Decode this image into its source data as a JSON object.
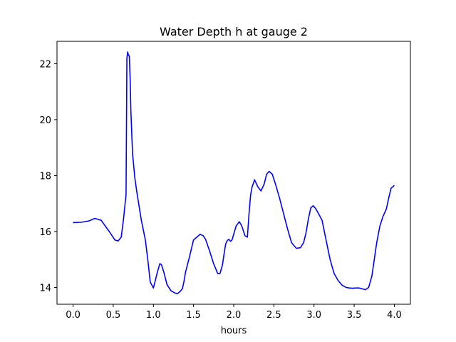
{
  "chart_data": {
    "type": "line",
    "title": "Water Depth h at gauge 2",
    "xlabel": "hours",
    "ylabel": "",
    "xlim": [
      -0.2,
      4.2
    ],
    "ylim": [
      13.4,
      22.8
    ],
    "xticks": [
      0.0,
      0.5,
      1.0,
      1.5,
      2.0,
      2.5,
      3.0,
      3.5,
      4.0
    ],
    "xtick_labels": [
      "0.0",
      "0.5",
      "1.0",
      "1.5",
      "2.0",
      "2.5",
      "3.0",
      "3.5",
      "4.0"
    ],
    "yticks": [
      14,
      16,
      18,
      20,
      22
    ],
    "ytick_labels": [
      "14",
      "16",
      "18",
      "20",
      "22"
    ],
    "grid": false,
    "series": [
      {
        "color": "#0000ff",
        "x": [
          0.0,
          0.1,
          0.2,
          0.27,
          0.35,
          0.45,
          0.52,
          0.56,
          0.6,
          0.63,
          0.65,
          0.66,
          0.67,
          0.68,
          0.69,
          0.7,
          0.71,
          0.72,
          0.74,
          0.77,
          0.8,
          0.85,
          0.9,
          0.93,
          0.96,
          1.0,
          1.02,
          1.05,
          1.08,
          1.1,
          1.13,
          1.17,
          1.22,
          1.27,
          1.3,
          1.33,
          1.36,
          1.38,
          1.4,
          1.45,
          1.5,
          1.55,
          1.58,
          1.62,
          1.65,
          1.7,
          1.75,
          1.8,
          1.83,
          1.86,
          1.88,
          1.9,
          1.92,
          1.94,
          1.96,
          1.98,
          2.0,
          2.03,
          2.07,
          2.1,
          2.14,
          2.17,
          2.19,
          2.21,
          2.23,
          2.26,
          2.3,
          2.34,
          2.38,
          2.41,
          2.44,
          2.48,
          2.52,
          2.57,
          2.62,
          2.67,
          2.72,
          2.78,
          2.83,
          2.87,
          2.9,
          2.93,
          2.96,
          2.99,
          3.02,
          3.06,
          3.1,
          3.15,
          3.2,
          3.25,
          3.3,
          3.35,
          3.4,
          3.44,
          3.48,
          3.52,
          3.56,
          3.6,
          3.64,
          3.68,
          3.72,
          3.75,
          3.78,
          3.82,
          3.86,
          3.9,
          3.93,
          3.96,
          4.0
        ],
        "y": [
          16.32,
          16.33,
          16.38,
          16.47,
          16.4,
          16.0,
          15.7,
          15.66,
          15.8,
          16.5,
          17.05,
          17.3,
          22.2,
          22.42,
          22.3,
          22.28,
          21.5,
          20.3,
          18.8,
          17.9,
          17.3,
          16.4,
          15.7,
          15.0,
          14.2,
          13.98,
          14.2,
          14.55,
          14.85,
          14.82,
          14.55,
          14.1,
          13.88,
          13.8,
          13.78,
          13.85,
          13.95,
          14.2,
          14.55,
          15.1,
          15.7,
          15.82,
          15.9,
          15.85,
          15.72,
          15.3,
          14.85,
          14.5,
          14.5,
          14.8,
          15.2,
          15.55,
          15.68,
          15.72,
          15.65,
          15.7,
          15.9,
          16.2,
          16.35,
          16.2,
          15.85,
          15.8,
          16.6,
          17.3,
          17.6,
          17.85,
          17.6,
          17.45,
          17.7,
          18.05,
          18.15,
          18.05,
          17.7,
          17.2,
          16.65,
          16.1,
          15.6,
          15.4,
          15.42,
          15.6,
          15.95,
          16.45,
          16.85,
          16.92,
          16.82,
          16.62,
          16.4,
          15.7,
          15.0,
          14.5,
          14.25,
          14.08,
          14.0,
          13.98,
          13.97,
          13.98,
          13.98,
          13.95,
          13.92,
          14.0,
          14.4,
          15.0,
          15.6,
          16.2,
          16.55,
          16.8,
          17.2,
          17.55,
          17.65
        ]
      }
    ]
  }
}
